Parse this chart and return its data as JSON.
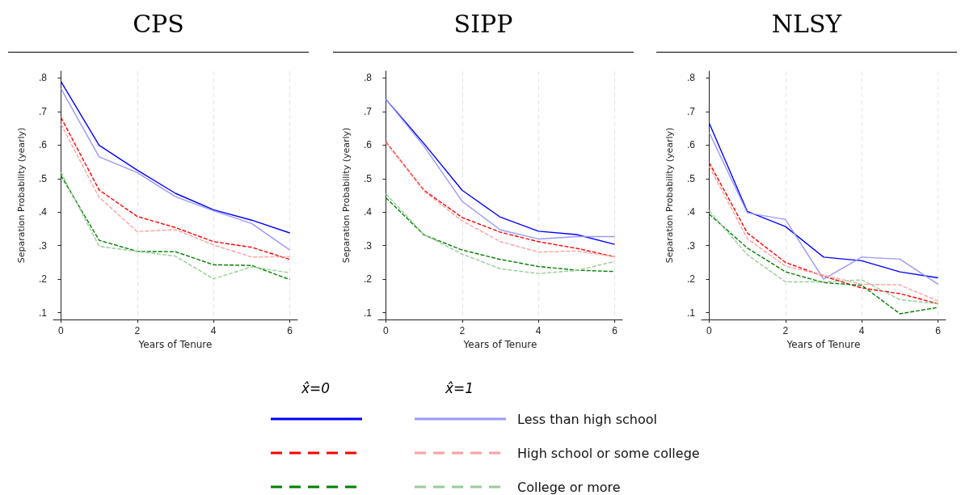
{
  "chart_data": [
    {
      "type": "line",
      "title": "CPS",
      "xlabel": "Years of Tenure",
      "ylabel": "Separation Probability (yearly)",
      "x": [
        0,
        1,
        2,
        3,
        4,
        5,
        6
      ],
      "xlim": [
        -0.2,
        6.2
      ],
      "ylim": [
        0.08,
        0.82
      ],
      "xticks": [
        0,
        2,
        4,
        6
      ],
      "yticks": [
        {
          "value": 0.1,
          "label": ".1"
        },
        {
          "value": 0.2,
          "label": ".2"
        },
        {
          "value": 0.3,
          "label": ".3"
        },
        {
          "value": 0.4,
          "label": ".4"
        },
        {
          "value": 0.5,
          "label": ".5"
        },
        {
          "value": 0.6,
          "label": ".6"
        },
        {
          "value": 0.7,
          "label": ".7"
        },
        {
          "value": 0.8,
          "label": ".8"
        }
      ],
      "grid": "x",
      "marker": "none",
      "series": [
        {
          "color": "#0000ff",
          "line_style": "solid",
          "values": [
            0.789,
            0.599,
            0.525,
            0.456,
            0.407,
            0.376,
            0.338
          ]
        },
        {
          "color": "#ff0000",
          "line_style": "dashed",
          "values": [
            0.682,
            0.466,
            0.387,
            0.354,
            0.312,
            0.295,
            0.259
          ]
        },
        {
          "color": "#008000",
          "line_style": "dashed",
          "values": [
            0.509,
            0.316,
            0.283,
            0.282,
            0.243,
            0.241,
            0.199
          ]
        },
        {
          "color": "#9999ff",
          "line_style": "solid",
          "values": [
            0.768,
            0.565,
            0.518,
            0.446,
            0.404,
            0.366,
            0.287
          ]
        },
        {
          "color": "#ffa0a0",
          "line_style": "dashed",
          "values": [
            0.662,
            0.444,
            0.342,
            0.348,
            0.302,
            0.266,
            0.267
          ]
        },
        {
          "color": "#99cc99",
          "line_style": "dashed",
          "values": [
            0.519,
            0.298,
            0.283,
            0.269,
            0.201,
            0.237,
            0.219
          ]
        }
      ]
    },
    {
      "type": "line",
      "title": "SIPP",
      "xlabel": "Years of Tenure",
      "ylabel": "Separation Probability (yearly)",
      "x": [
        0,
        1,
        2,
        3,
        4,
        5,
        6
      ],
      "xlim": [
        -0.2,
        6.2
      ],
      "ylim": [
        0.08,
        0.82
      ],
      "xticks": [
        0,
        2,
        4,
        6
      ],
      "yticks": [
        {
          "value": 0.1,
          "label": ".1"
        },
        {
          "value": 0.2,
          "label": ".2"
        },
        {
          "value": 0.3,
          "label": ".3"
        },
        {
          "value": 0.4,
          "label": ".4"
        },
        {
          "value": 0.5,
          "label": ".5"
        },
        {
          "value": 0.6,
          "label": ".6"
        },
        {
          "value": 0.7,
          "label": ".7"
        },
        {
          "value": 0.8,
          "label": ".8"
        }
      ],
      "grid": "x",
      "marker": "none",
      "legend": "bottom",
      "annotations": [
        "x̂=0",
        "x̂=1"
      ],
      "series": [
        {
          "color": "#0000ff",
          "line_style": "solid",
          "values": [
            0.736,
            0.604,
            0.465,
            0.385,
            0.343,
            0.333,
            0.304
          ]
        },
        {
          "color": "#ff0000",
          "line_style": "dashed",
          "values": [
            0.609,
            0.465,
            0.384,
            0.34,
            0.312,
            0.292,
            0.267
          ]
        },
        {
          "color": "#008000",
          "line_style": "dashed",
          "values": [
            0.443,
            0.332,
            0.287,
            0.259,
            0.238,
            0.227,
            0.223
          ]
        },
        {
          "name": "Less than high school",
          "color": "#9999ff",
          "line_style": "solid",
          "values": [
            0.736,
            0.596,
            0.432,
            0.347,
            0.32,
            0.327,
            0.327
          ]
        },
        {
          "name": "High school or some college",
          "color": "#ffa0a0",
          "line_style": "dashed",
          "values": [
            0.607,
            0.462,
            0.374,
            0.312,
            0.281,
            0.284,
            0.267
          ]
        },
        {
          "name": "College or more",
          "color": "#99cc99",
          "line_style": "dashed",
          "values": [
            0.454,
            0.333,
            0.275,
            0.231,
            0.217,
            0.226,
            0.253
          ]
        }
      ]
    },
    {
      "type": "line",
      "title": "NLSY",
      "xlabel": "Years of Tenure",
      "ylabel": "Separation Probability (yearly)",
      "x": [
        0,
        1,
        2,
        3,
        4,
        5,
        6
      ],
      "xlim": [
        -0.2,
        6.2
      ],
      "ylim": [
        0.08,
        0.82
      ],
      "xticks": [
        0,
        2,
        4,
        6
      ],
      "yticks": [
        {
          "value": 0.1,
          "label": ".1"
        },
        {
          "value": 0.2,
          "label": ".2"
        },
        {
          "value": 0.3,
          "label": ".3"
        },
        {
          "value": 0.4,
          "label": ".4"
        },
        {
          "value": 0.5,
          "label": ".5"
        },
        {
          "value": 0.6,
          "label": ".6"
        },
        {
          "value": 0.7,
          "label": ".7"
        },
        {
          "value": 0.8,
          "label": ".8"
        }
      ],
      "grid": "x",
      "marker": "none",
      "series": [
        {
          "color": "#0000ff",
          "line_style": "solid",
          "values": [
            0.665,
            0.402,
            0.357,
            0.266,
            0.255,
            0.222,
            0.204
          ]
        },
        {
          "color": "#ff0000",
          "line_style": "dashed",
          "values": [
            0.547,
            0.338,
            0.25,
            0.209,
            0.174,
            0.157,
            0.127
          ]
        },
        {
          "color": "#008000",
          "line_style": "dashed",
          "values": [
            0.394,
            0.293,
            0.222,
            0.19,
            0.182,
            0.097,
            0.116
          ]
        },
        {
          "color": "#9999ff",
          "line_style": "solid",
          "values": [
            0.637,
            0.398,
            0.378,
            0.2,
            0.266,
            0.26,
            0.185
          ]
        },
        {
          "color": "#ffa0a0",
          "line_style": "dashed",
          "values": [
            0.536,
            0.321,
            0.239,
            0.212,
            0.185,
            0.183,
            0.135
          ]
        },
        {
          "color": "#99cc99",
          "line_style": "dashed",
          "values": [
            0.404,
            0.273,
            0.192,
            0.192,
            0.198,
            0.139,
            0.127
          ]
        }
      ]
    }
  ]
}
